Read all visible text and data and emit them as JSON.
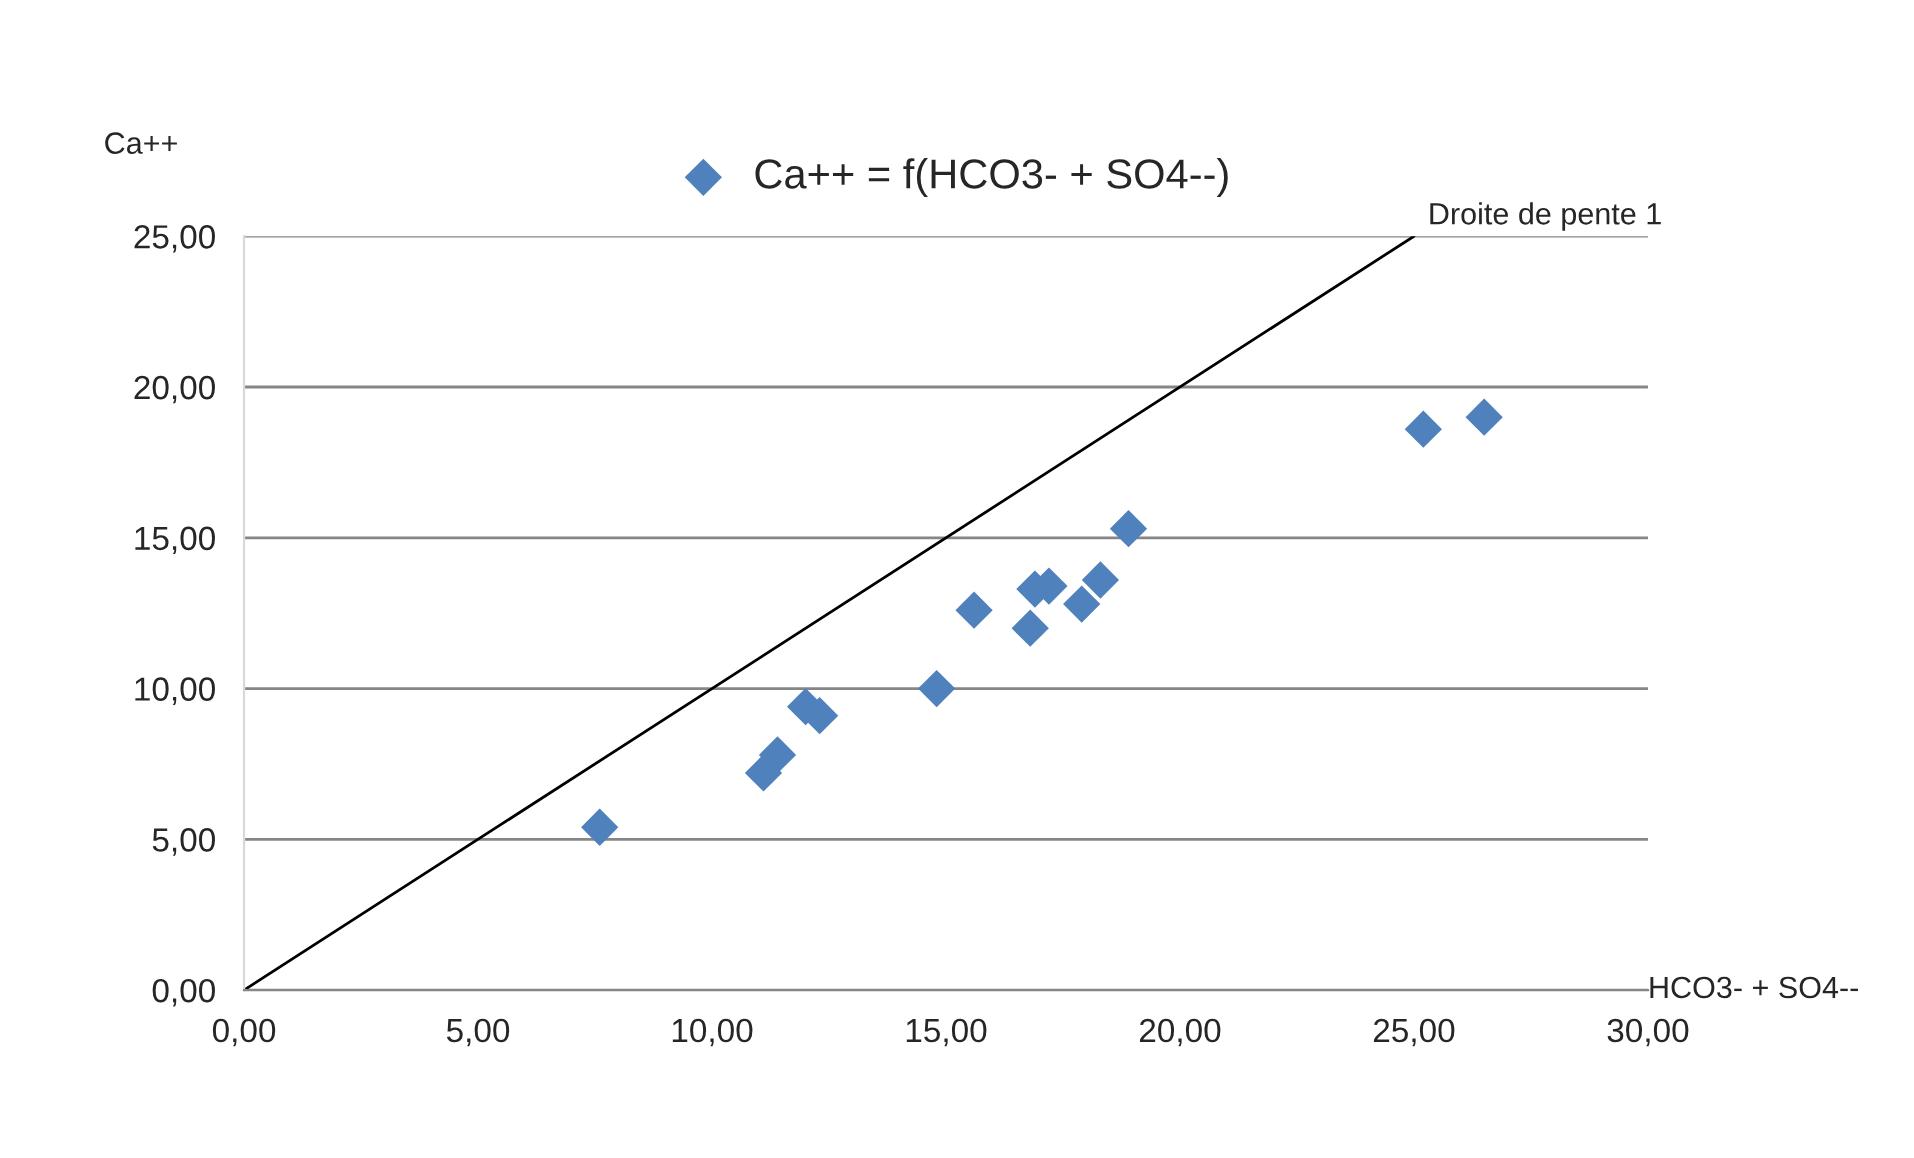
{
  "chart_data": {
    "type": "scatter",
    "ylabel": "Ca++",
    "xlabel": "HCO3- + SO4--",
    "legend": "top",
    "marker": "diamond",
    "grid": "y",
    "xlim": [
      0,
      30
    ],
    "ylim": [
      0,
      25
    ],
    "xticks": [
      {
        "value": 0,
        "label": "0,00"
      },
      {
        "value": 5,
        "label": "5,00"
      },
      {
        "value": 10,
        "label": "10,00"
      },
      {
        "value": 15,
        "label": "15,00"
      },
      {
        "value": 20,
        "label": "20,00"
      },
      {
        "value": 25,
        "label": "25,00"
      },
      {
        "value": 30,
        "label": "30,00"
      }
    ],
    "yticks": [
      {
        "value": 0,
        "label": "0,00"
      },
      {
        "value": 5,
        "label": "5,00"
      },
      {
        "value": 10,
        "label": "10,00"
      },
      {
        "value": 15,
        "label": "15,00"
      },
      {
        "value": 20,
        "label": "20,00"
      },
      {
        "value": 25,
        "label": "25,00"
      }
    ],
    "series": [
      {
        "name": "Ca++ = f(HCO3- + SO4--)",
        "color": "#4f81bd",
        "x": [
          7.6,
          11.1,
          11.4,
          12.0,
          12.3,
          14.8,
          15.6,
          16.8,
          16.9,
          17.2,
          17.9,
          18.3,
          18.9,
          25.2,
          26.5
        ],
        "values": [
          5.4,
          7.2,
          7.8,
          9.4,
          9.1,
          10.0,
          12.6,
          12.0,
          13.3,
          13.4,
          12.8,
          13.6,
          15.3,
          18.6,
          19.0
        ]
      },
      {
        "name": "Droite de pente 1",
        "type": "line",
        "color": "#000000",
        "marker": "none",
        "x": [
          0,
          25
        ],
        "values": [
          0,
          25
        ]
      }
    ]
  }
}
